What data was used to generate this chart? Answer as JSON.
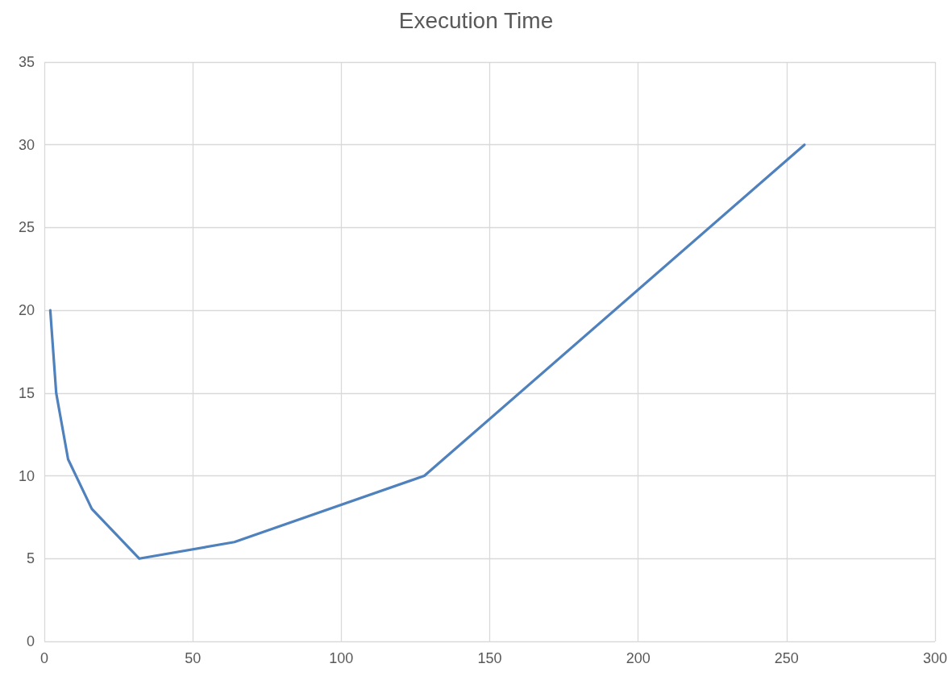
{
  "chart_data": {
    "type": "line",
    "title": "Execution Time",
    "x": [
      2,
      4,
      8,
      16,
      32,
      64,
      128,
      256
    ],
    "series": [
      {
        "color": "#4f81bd",
        "values": [
          20,
          15,
          11,
          8,
          5,
          6,
          10,
          30
        ]
      }
    ],
    "xlim": [
      0,
      300
    ],
    "xticks": [
      0,
      50,
      100,
      150,
      200,
      250,
      300
    ],
    "ylim": [
      0,
      35
    ],
    "yticks": [
      0,
      5,
      10,
      15,
      20,
      25,
      30,
      35
    ],
    "grid": true,
    "marker": "none",
    "line_style": "solid"
  }
}
